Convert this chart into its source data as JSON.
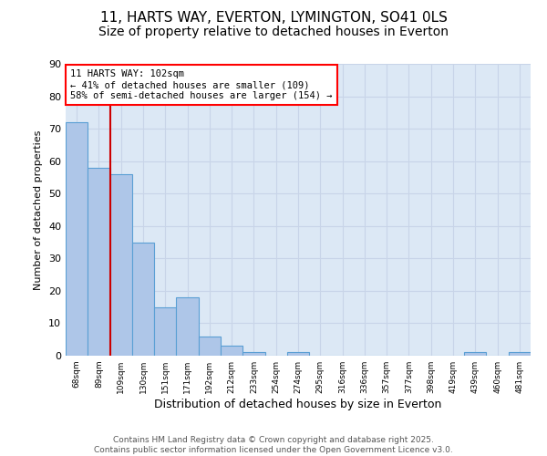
{
  "title1": "11, HARTS WAY, EVERTON, LYMINGTON, SO41 0LS",
  "title2": "Size of property relative to detached houses in Everton",
  "xlabel": "Distribution of detached houses by size in Everton",
  "ylabel": "Number of detached properties",
  "categories": [
    "68sqm",
    "89sqm",
    "109sqm",
    "130sqm",
    "151sqm",
    "171sqm",
    "192sqm",
    "212sqm",
    "233sqm",
    "254sqm",
    "274sqm",
    "295sqm",
    "316sqm",
    "336sqm",
    "357sqm",
    "377sqm",
    "398sqm",
    "419sqm",
    "439sqm",
    "460sqm",
    "481sqm"
  ],
  "values": [
    72,
    58,
    56,
    35,
    15,
    18,
    6,
    3,
    1,
    0,
    1,
    0,
    0,
    0,
    0,
    0,
    0,
    0,
    1,
    0,
    1
  ],
  "bar_color": "#aec6e8",
  "bar_edge_color": "#5a9fd4",
  "red_line_index": 2,
  "annotation_title": "11 HARTS WAY: 102sqm",
  "annotation_line1": "← 41% of detached houses are smaller (109)",
  "annotation_line2": "58% of semi-detached houses are larger (154) →",
  "annotation_box_color": "white",
  "annotation_box_edge": "red",
  "red_line_color": "#cc0000",
  "ylim": [
    0,
    90
  ],
  "yticks": [
    0,
    10,
    20,
    30,
    40,
    50,
    60,
    70,
    80,
    90
  ],
  "grid_color": "#c8d4e8",
  "background_color": "#dce8f5",
  "footer1": "Contains HM Land Registry data © Crown copyright and database right 2025.",
  "footer2": "Contains public sector information licensed under the Open Government Licence v3.0.",
  "title_fontsize": 11,
  "subtitle_fontsize": 10
}
